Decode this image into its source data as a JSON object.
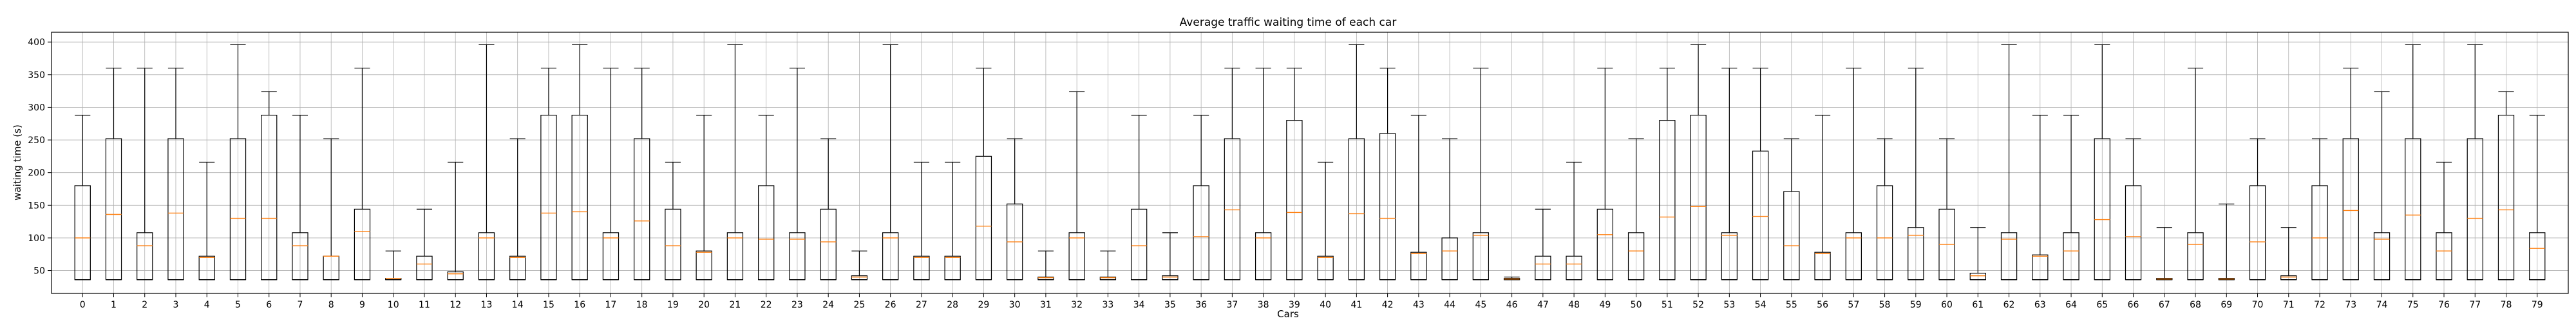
{
  "chart_data": {
    "type": "box",
    "title": "Average traffic waiting time of each car",
    "xlabel": "Cars",
    "ylabel": "waiting time (s)",
    "ylim": [
      15,
      415
    ],
    "yticks": [
      50,
      100,
      150,
      200,
      250,
      300,
      350,
      400
    ],
    "grid": true,
    "colors": {
      "box": "#000000",
      "median": "#ff7f0e",
      "grid": "#b0b0b0"
    },
    "categories": [
      "0",
      "1",
      "2",
      "3",
      "4",
      "5",
      "6",
      "7",
      "8",
      "9",
      "10",
      "11",
      "12",
      "13",
      "14",
      "15",
      "16",
      "17",
      "18",
      "19",
      "20",
      "21",
      "22",
      "23",
      "24",
      "25",
      "26",
      "27",
      "28",
      "29",
      "30",
      "31",
      "32",
      "33",
      "34",
      "35",
      "36",
      "37",
      "38",
      "39",
      "40",
      "41",
      "42",
      "43",
      "44",
      "45",
      "46",
      "47",
      "48",
      "49",
      "50",
      "51",
      "52",
      "53",
      "54",
      "55",
      "56",
      "57",
      "58",
      "59",
      "60",
      "61",
      "62",
      "63",
      "64",
      "65",
      "66",
      "67",
      "68",
      "69",
      "70",
      "71",
      "72",
      "73",
      "74",
      "75",
      "76",
      "77",
      "78",
      "79"
    ],
    "q1": [
      36,
      36,
      36,
      36,
      36,
      36,
      36,
      36,
      36,
      36,
      36,
      36,
      36,
      36,
      36,
      36,
      36,
      36,
      36,
      36,
      36,
      36,
      36,
      36,
      36,
      36,
      36,
      36,
      36,
      36,
      36,
      36,
      36,
      36,
      36,
      36,
      36,
      36,
      36,
      36,
      36,
      36,
      36,
      36,
      36,
      36,
      36,
      36,
      36,
      36,
      36,
      36,
      36,
      36,
      36,
      36,
      36,
      36,
      36,
      36,
      36,
      36,
      36,
      36,
      36,
      36,
      36,
      36,
      36,
      36,
      36,
      36,
      36,
      36,
      36,
      36,
      36,
      36,
      36,
      36
    ],
    "q3": [
      180,
      252,
      108,
      252,
      72,
      252,
      288,
      108,
      72,
      144,
      38,
      72,
      48,
      108,
      72,
      288,
      288,
      108,
      252,
      144,
      80,
      108,
      180,
      108,
      144,
      42,
      108,
      72,
      72,
      225,
      152,
      40,
      108,
      40,
      144,
      42,
      180,
      252,
      108,
      280,
      72,
      252,
      260,
      78,
      100,
      108,
      38,
      72,
      72,
      144,
      108,
      280,
      288,
      108,
      233,
      171,
      78,
      108,
      180,
      116,
      144,
      46,
      108,
      74,
      108,
      252,
      180,
      38,
      108,
      38,
      180,
      42,
      180,
      252,
      108,
      252,
      108,
      252,
      288,
      108
    ],
    "median": [
      100,
      136,
      88,
      138,
      70,
      130,
      130,
      88,
      72,
      110,
      38,
      60,
      45,
      100,
      70,
      138,
      140,
      100,
      126,
      88,
      78,
      100,
      98,
      98,
      94,
      40,
      100,
      70,
      70,
      118,
      94,
      39,
      100,
      39,
      88,
      40,
      102,
      143,
      100,
      139,
      70,
      137,
      130,
      76,
      80,
      104,
      37,
      60,
      60,
      105,
      80,
      132,
      148,
      104,
      133,
      88,
      76,
      100,
      100,
      104,
      90,
      42,
      98,
      72,
      80,
      128,
      102,
      37,
      90,
      37,
      94,
      40,
      100,
      142,
      98,
      135,
      80,
      130,
      143,
      84
    ],
    "whisker_low": [
      36,
      36,
      36,
      36,
      36,
      36,
      36,
      36,
      36,
      36,
      36,
      36,
      36,
      36,
      36,
      36,
      36,
      36,
      36,
      36,
      36,
      36,
      36,
      36,
      36,
      36,
      36,
      36,
      36,
      36,
      36,
      36,
      36,
      36,
      36,
      36,
      36,
      36,
      36,
      36,
      36,
      36,
      36,
      36,
      36,
      36,
      36,
      36,
      36,
      36,
      36,
      36,
      36,
      36,
      36,
      36,
      36,
      36,
      36,
      36,
      36,
      36,
      36,
      36,
      36,
      36,
      36,
      36,
      36,
      36,
      36,
      36,
      36,
      36,
      36,
      36,
      36,
      36,
      36,
      36
    ],
    "whisker_high": [
      288,
      360,
      360,
      360,
      216,
      396,
      324,
      288,
      252,
      360,
      80,
      144,
      216,
      396,
      252,
      360,
      396,
      360,
      360,
      216,
      288,
      396,
      288,
      360,
      252,
      80,
      396,
      216,
      216,
      360,
      252,
      80,
      324,
      80,
      288,
      108,
      288,
      360,
      360,
      360,
      216,
      396,
      360,
      288,
      252,
      360,
      40,
      144,
      216,
      360,
      252,
      360,
      396,
      360,
      360,
      252,
      288,
      360,
      252,
      360,
      252,
      116,
      396,
      288,
      288,
      396,
      252,
      116,
      360,
      152,
      252,
      116,
      252,
      360,
      324,
      396,
      216,
      396,
      324,
      288
    ]
  }
}
